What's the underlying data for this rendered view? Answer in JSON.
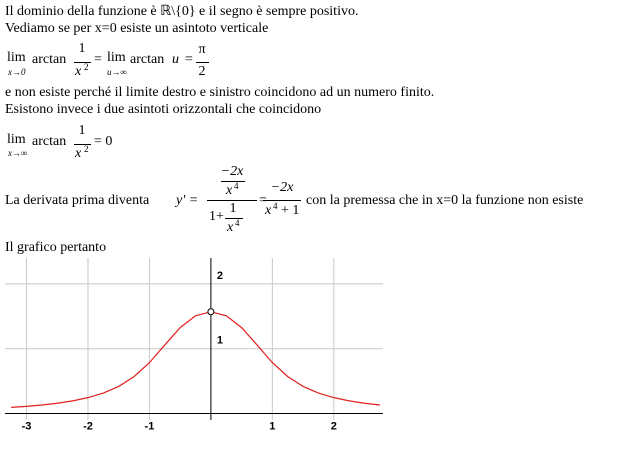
{
  "text": {
    "line1": "Il dominio della funzione è ℝ\\{0} e il segno è sempre positivo.",
    "line2": "Vediamo se per x=0 esiste un asintoto verticale",
    "line3": "e non esiste perché il limite destro e sinistro coincidono ad un numero finito.",
    "line4": "Esistono invece i due asintoti orizzontali che coincidono",
    "line5": "La derivata prima diventa",
    "line6": "con la premessa che in x=0 la funzione non esiste",
    "line7": "Il grafico pertanto"
  },
  "formula1": {
    "lim1": "lim",
    "sub1": "x→0",
    "fn1": "arctan",
    "num1": "1",
    "den1": "x",
    "exp1": "2",
    "eq1": "=",
    "lim2": "lim",
    "sub2": "u→∞",
    "fn2": "arctan",
    "var2": "u",
    "eq2": "=",
    "num2": "π",
    "den2": "2"
  },
  "formula2": {
    "lim": "lim",
    "sub": "x→∞",
    "fn": "arctan",
    "num": "1",
    "den": "x",
    "exp": "2",
    "eq": "= 0"
  },
  "derivative": {
    "lhs": "y' =",
    "inum": "−2x",
    "iden": "x",
    "iexp": "4",
    "one": "1+",
    "dnum": "1",
    "dden": "x",
    "dexp": "4",
    "eq": "=",
    "rnum": "−2x",
    "rden": "x",
    "rexp": "4",
    "rplus": "+ 1"
  },
  "chart_data": {
    "type": "line",
    "xlim": [
      -3.35,
      2.8
    ],
    "ylim": [
      -0.1,
      2.4
    ],
    "xticks": [
      -3,
      -2,
      -1,
      1,
      2
    ],
    "yticks": [
      1,
      2
    ],
    "grid": true,
    "x": [
      -3.25,
      -3,
      -2.75,
      -2.5,
      -2.25,
      -2,
      -1.75,
      -1.5,
      -1.25,
      -1,
      -0.75,
      -0.5,
      -0.25,
      0,
      0.25,
      0.5,
      0.75,
      1,
      1.25,
      1.5,
      1.75,
      2,
      2.25,
      2.5,
      2.75
    ],
    "series": [
      {
        "color": "#e02020",
        "values": [
          0.0944,
          0.1107,
          0.1315,
          0.1587,
          0.195,
          0.245,
          0.3157,
          0.4182,
          0.5693,
          0.7854,
          1.0584,
          1.3258,
          1.5084,
          1.5708,
          1.5084,
          1.3258,
          1.0584,
          0.7854,
          0.5693,
          0.4182,
          0.3157,
          0.245,
          0.195,
          0.1587,
          0.1315
        ]
      }
    ],
    "hole": {
      "x": 0,
      "y": 1.5708
    }
  }
}
